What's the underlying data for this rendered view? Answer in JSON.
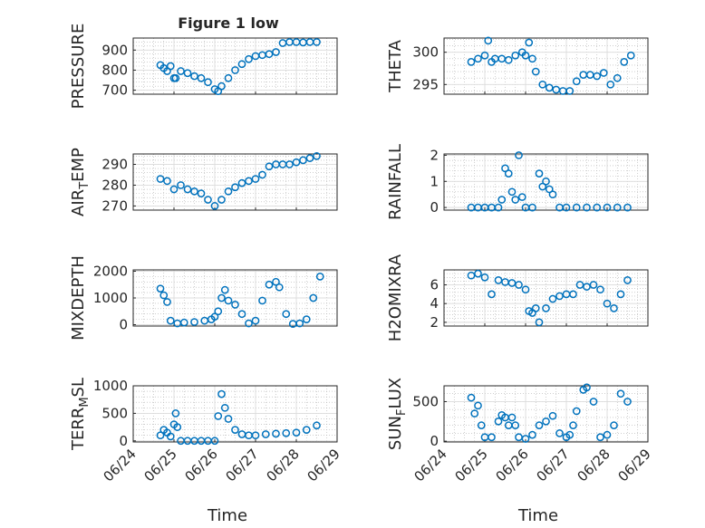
{
  "figure_title": "Figure 1 low",
  "xlabel": "Time",
  "x_ticks": [
    "06/24",
    "06/25",
    "06/26",
    "06/27",
    "06/28",
    "06/29"
  ],
  "colors": {
    "marker": "#0072BD",
    "axis": "#262626",
    "grid": "#b0b0b0"
  },
  "chart_data": [
    {
      "type": "scatter",
      "ylabel": "PRESSURE",
      "ylim": [
        680,
        960
      ],
      "yticks": [
        700,
        800,
        900
      ],
      "x": [
        "06/24 16:00",
        "06/24 18:00",
        "06/24 20:00",
        "06/24 22:00",
        "06/25 00:00",
        "06/25 01:00",
        "06/25 04:00",
        "06/25 08:00",
        "06/25 12:00",
        "06/25 16:00",
        "06/25 20:00",
        "06/26 00:00",
        "06/26 02:00",
        "06/26 04:00",
        "06/26 08:00",
        "06/26 12:00",
        "06/26 16:00",
        "06/26 20:00",
        "06/27 00:00",
        "06/27 04:00",
        "06/27 08:00",
        "06/27 12:00",
        "06/27 16:00",
        "06/27 20:00",
        "06/28 00:00",
        "06/28 04:00",
        "06/28 08:00",
        "06/28 12:00"
      ],
      "y": [
        825,
        810,
        795,
        820,
        760,
        760,
        795,
        785,
        770,
        760,
        740,
        705,
        695,
        720,
        760,
        800,
        830,
        855,
        870,
        875,
        880,
        890,
        935,
        940,
        940,
        938,
        940,
        940
      ]
    },
    {
      "type": "scatter",
      "ylabel": "THETA",
      "ylim": [
        293.5,
        302.2
      ],
      "yticks": [
        295,
        300
      ],
      "x": [
        "06/24 16:00",
        "06/24 20:00",
        "06/25 00:00",
        "06/25 02:00",
        "06/25 04:00",
        "06/25 06:00",
        "06/25 10:00",
        "06/25 14:00",
        "06/25 18:00",
        "06/25 22:00",
        "06/26 00:00",
        "06/26 02:00",
        "06/26 04:00",
        "06/26 06:00",
        "06/26 10:00",
        "06/26 14:00",
        "06/26 18:00",
        "06/26 22:00",
        "06/27 02:00",
        "06/27 06:00",
        "06/27 10:00",
        "06/27 14:00",
        "06/27 18:00",
        "06/27 22:00",
        "06/28 02:00",
        "06/28 06:00",
        "06/28 10:00",
        "06/28 14:00"
      ],
      "y": [
        298.5,
        299,
        299.5,
        301.8,
        298.5,
        299,
        299,
        298.8,
        299.5,
        300,
        299.5,
        301.5,
        299,
        297,
        295,
        294.5,
        294.2,
        294,
        294,
        295.5,
        296.5,
        296.5,
        296.3,
        296.8,
        295,
        296,
        298.5,
        299.5
      ]
    },
    {
      "type": "scatter",
      "ylabel": "AIR_TEMP",
      "ylim": [
        268,
        295
      ],
      "yticks": [
        270,
        280,
        290
      ],
      "x": [
        "06/24 16:00",
        "06/24 20:00",
        "06/25 00:00",
        "06/25 04:00",
        "06/25 08:00",
        "06/25 12:00",
        "06/25 16:00",
        "06/25 20:00",
        "06/26 00:00",
        "06/26 04:00",
        "06/26 08:00",
        "06/26 12:00",
        "06/26 16:00",
        "06/26 20:00",
        "06/27 00:00",
        "06/27 04:00",
        "06/27 08:00",
        "06/27 12:00",
        "06/27 16:00",
        "06/27 20:00",
        "06/28 00:00",
        "06/28 04:00",
        "06/28 08:00",
        "06/28 12:00"
      ],
      "y": [
        283,
        282,
        278,
        280,
        278,
        277,
        276,
        273,
        270,
        273,
        277,
        279,
        281,
        282,
        283,
        285,
        289,
        290,
        290,
        290,
        291,
        292,
        293,
        294
      ]
    },
    {
      "type": "scatter",
      "ylabel": "RAINFALL",
      "ylim": [
        -0.1,
        2.05
      ],
      "yticks": [
        0,
        1,
        2
      ],
      "x": [
        "06/24 16:00",
        "06/24 20:00",
        "06/25 00:00",
        "06/25 04:00",
        "06/25 08:00",
        "06/25 10:00",
        "06/25 12:00",
        "06/25 14:00",
        "06/25 16:00",
        "06/25 18:00",
        "06/25 20:00",
        "06/25 22:00",
        "06/26 00:00",
        "06/26 04:00",
        "06/26 08:00",
        "06/26 10:00",
        "06/26 12:00",
        "06/26 14:00",
        "06/26 16:00",
        "06/26 20:00",
        "06/27 00:00",
        "06/27 06:00",
        "06/27 12:00",
        "06/27 18:00",
        "06/28 00:00",
        "06/28 06:00",
        "06/28 12:00"
      ],
      "y": [
        0,
        0,
        0,
        0,
        0,
        0.3,
        1.5,
        1.3,
        0.6,
        0.3,
        2.0,
        0.4,
        0,
        0,
        1.3,
        0.8,
        1.0,
        0.7,
        0.5,
        0,
        0,
        0,
        0,
        0,
        0,
        0,
        0
      ]
    },
    {
      "type": "scatter",
      "ylabel": "MIXDEPTH",
      "ylim": [
        -50,
        2050
      ],
      "yticks": [
        0,
        1000,
        2000
      ],
      "x": [
        "06/24 16:00",
        "06/24 18:00",
        "06/24 20:00",
        "06/24 22:00",
        "06/25 02:00",
        "06/25 06:00",
        "06/25 12:00",
        "06/25 18:00",
        "06/25 22:00",
        "06/26 00:00",
        "06/26 02:00",
        "06/26 04:00",
        "06/26 06:00",
        "06/26 08:00",
        "06/26 12:00",
        "06/26 16:00",
        "06/26 20:00",
        "06/27 00:00",
        "06/27 04:00",
        "06/27 08:00",
        "06/27 12:00",
        "06/27 14:00",
        "06/27 18:00",
        "06/27 22:00",
        "06/28 02:00",
        "06/28 06:00",
        "06/28 10:00",
        "06/28 14:00"
      ],
      "y": [
        1350,
        1100,
        850,
        150,
        50,
        80,
        100,
        150,
        200,
        300,
        500,
        1000,
        1300,
        900,
        750,
        400,
        50,
        150,
        900,
        1500,
        1600,
        1400,
        400,
        30,
        50,
        200,
        1000,
        1800
      ]
    },
    {
      "type": "scatter",
      "ylabel": "H2OMIXRA",
      "ylim": [
        1.6,
        7.6
      ],
      "yticks": [
        2,
        4,
        6
      ],
      "x": [
        "06/24 16:00",
        "06/24 20:00",
        "06/25 00:00",
        "06/25 04:00",
        "06/25 08:00",
        "06/25 12:00",
        "06/25 16:00",
        "06/25 20:00",
        "06/26 00:00",
        "06/26 02:00",
        "06/26 04:00",
        "06/26 06:00",
        "06/26 08:00",
        "06/26 12:00",
        "06/26 16:00",
        "06/26 20:00",
        "06/27 00:00",
        "06/27 04:00",
        "06/27 08:00",
        "06/27 12:00",
        "06/27 16:00",
        "06/27 20:00",
        "06/28 00:00",
        "06/28 04:00",
        "06/28 08:00",
        "06/28 12:00"
      ],
      "y": [
        7.0,
        7.2,
        6.8,
        5.0,
        6.5,
        6.3,
        6.2,
        6.0,
        5.5,
        3.2,
        3.0,
        3.5,
        2.0,
        3.5,
        4.5,
        4.8,
        5.0,
        5.0,
        6.0,
        5.8,
        6.0,
        5.5,
        4.0,
        3.5,
        5.0,
        6.5
      ]
    },
    {
      "type": "scatter",
      "ylabel": "TERR_MSL",
      "ylim": [
        -20,
        1000
      ],
      "yticks": [
        0,
        500,
        1000
      ],
      "x": [
        "06/24 16:00",
        "06/24 18:00",
        "06/24 20:00",
        "06/24 22:00",
        "06/25 00:00",
        "06/25 01:00",
        "06/25 02:00",
        "06/25 04:00",
        "06/25 08:00",
        "06/25 12:00",
        "06/25 16:00",
        "06/25 20:00",
        "06/26 00:00",
        "06/26 02:00",
        "06/26 04:00",
        "06/26 06:00",
        "06/26 08:00",
        "06/26 12:00",
        "06/26 16:00",
        "06/26 20:00",
        "06/27 00:00",
        "06/27 06:00",
        "06/27 12:00",
        "06/27 18:00",
        "06/28 00:00",
        "06/28 06:00",
        "06/28 12:00"
      ],
      "y": [
        100,
        200,
        150,
        80,
        300,
        500,
        250,
        0,
        0,
        0,
        0,
        0,
        0,
        450,
        850,
        600,
        400,
        200,
        120,
        100,
        100,
        120,
        130,
        140,
        150,
        200,
        280
      ]
    },
    {
      "type": "scatter",
      "ylabel": "SUN_FLUX",
      "ylim": [
        -10,
        700
      ],
      "yticks": [
        0,
        500
      ],
      "x": [
        "06/24 16:00",
        "06/24 18:00",
        "06/24 20:00",
        "06/24 22:00",
        "06/25 00:00",
        "06/25 04:00",
        "06/25 08:00",
        "06/25 10:00",
        "06/25 12:00",
        "06/25 14:00",
        "06/25 16:00",
        "06/25 18:00",
        "06/25 20:00",
        "06/26 00:00",
        "06/26 04:00",
        "06/26 08:00",
        "06/26 12:00",
        "06/26 16:00",
        "06/26 20:00",
        "06/27 00:00",
        "06/27 02:00",
        "06/27 04:00",
        "06/27 06:00",
        "06/27 10:00",
        "06/27 12:00",
        "06/27 16:00",
        "06/27 20:00",
        "06/28 00:00",
        "06/28 04:00",
        "06/28 08:00",
        "06/28 12:00"
      ],
      "y": [
        550,
        350,
        450,
        200,
        50,
        50,
        250,
        330,
        300,
        200,
        300,
        200,
        50,
        30,
        80,
        200,
        250,
        320,
        100,
        50,
        80,
        200,
        380,
        650,
        680,
        500,
        50,
        80,
        200,
        600,
        500
      ]
    }
  ]
}
